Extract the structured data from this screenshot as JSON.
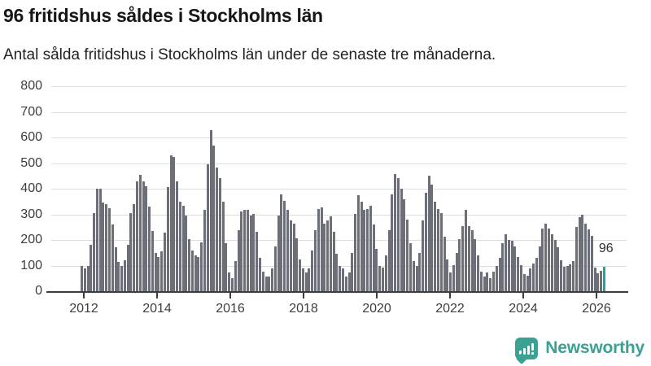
{
  "header": {
    "title": "96 fritidshus såldes i Stockholms län",
    "subtitle": "Antal sålda fritidshus i Stockholms län under de senaste tre månaderna."
  },
  "chart_data": {
    "type": "bar",
    "title": "96 fritidshus såldes i Stockholms län",
    "xlabel": "",
    "ylabel": "",
    "ylim": [
      0,
      800
    ],
    "yticks": [
      0,
      100,
      200,
      300,
      400,
      500,
      600,
      700,
      800
    ],
    "xticks": [
      "2012",
      "2014",
      "2016",
      "2018",
      "2020",
      "2022",
      "2024",
      "2026"
    ],
    "grid": true,
    "legend": "none",
    "start_month": "2012-01",
    "bar_color": "#6c6f77",
    "values": [
      100,
      90,
      100,
      180,
      305,
      400,
      400,
      345,
      340,
      325,
      260,
      170,
      115,
      100,
      120,
      180,
      305,
      340,
      430,
      455,
      430,
      410,
      330,
      235,
      150,
      134,
      155,
      228,
      405,
      530,
      525,
      430,
      350,
      332,
      296,
      202,
      160,
      140,
      134,
      192,
      317,
      494,
      630,
      567,
      483,
      442,
      348,
      187,
      72,
      50,
      119,
      239,
      312,
      317,
      317,
      296,
      301,
      233,
      129,
      77,
      56,
      58,
      88,
      176,
      296,
      379,
      353,
      317,
      275,
      265,
      207,
      124,
      88,
      72,
      90,
      160,
      239,
      322,
      327,
      265,
      275,
      291,
      233,
      145,
      100,
      88,
      56,
      72,
      150,
      301,
      374,
      348,
      317,
      322,
      332,
      259,
      166,
      98,
      93,
      140,
      239,
      379,
      457,
      440,
      400,
      360,
      280,
      186,
      119,
      98,
      150,
      275,
      384,
      452,
      415,
      348,
      322,
      306,
      212,
      124,
      72,
      103,
      150,
      202,
      254,
      317,
      254,
      239,
      202,
      140,
      77,
      56,
      72,
      51,
      77,
      98,
      130,
      186,
      223,
      200,
      197,
      176,
      134,
      103,
      67,
      61,
      90,
      108,
      129,
      174,
      246,
      262,
      244,
      223,
      200,
      173,
      121,
      96,
      100,
      106,
      119,
      250,
      290,
      298,
      265,
      242,
      215,
      93,
      69,
      79,
      96
    ],
    "highlight": {
      "index": 170,
      "value": 96,
      "label": "96",
      "color": "#23a3a0"
    }
  },
  "footer": {
    "brand": "Newsworthy",
    "brand_color": "#3aa193",
    "logo_icon": "bar-chart-speech-bubble"
  }
}
